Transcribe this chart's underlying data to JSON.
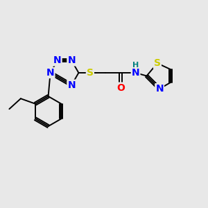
{
  "background_color": "#e8e8e8",
  "bond_color": "#000000",
  "atom_colors": {
    "N": "#0000ff",
    "S": "#cccc00",
    "O": "#ff0000",
    "H": "#008080",
    "C": "#000000"
  },
  "font_size_atoms": 10,
  "font_size_h": 8,
  "figsize": [
    3.0,
    3.0
  ],
  "dpi": 100,
  "xlim": [
    0,
    10
  ],
  "ylim": [
    0,
    10
  ]
}
